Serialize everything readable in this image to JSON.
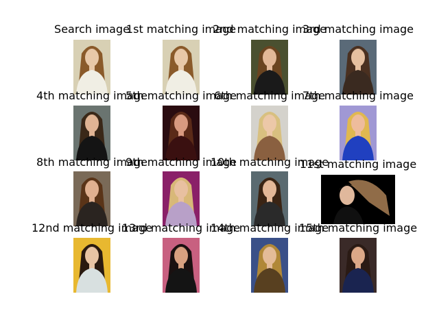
{
  "figure": {
    "cells": [
      {
        "title": "Search image",
        "bg": "#d8d0b4",
        "hair": "#8a5a2a",
        "skin": "#e8c8a8",
        "top": "#f0eee4"
      },
      {
        "title": "1st matching image",
        "bg": "#d8d0b4",
        "hair": "#8a5a2a",
        "skin": "#e8c8a8",
        "top": "#f0eee4"
      },
      {
        "title": "2nd matching image",
        "bg": "#4a5030",
        "hair": "#6a4420",
        "skin": "#e2b898",
        "top": "#1a1a1a"
      },
      {
        "title": "3rd matching image",
        "bg": "#5a6a78",
        "hair": "#4a3020",
        "skin": "#e6c0a0",
        "top": "#3a2a20"
      },
      {
        "title": "4th matching image",
        "bg": "#6a7470",
        "hair": "#3a2818",
        "skin": "#e0b494",
        "top": "#141414"
      },
      {
        "title": "5th matching image",
        "bg": "#2a0c10",
        "hair": "#5a2a18",
        "skin": "#d89a80",
        "top": "#3a1010"
      },
      {
        "title": "6th matching image",
        "bg": "#d4d2cc",
        "hair": "#d8c080",
        "skin": "#ecc8a8",
        "top": "#8a6040"
      },
      {
        "title": "7th matching image",
        "bg": "#a098d4",
        "hair": "#e0b850",
        "skin": "#eebc9c",
        "top": "#2040c0"
      },
      {
        "title": "8th matching image",
        "bg": "#7a6a58",
        "hair": "#5a3418",
        "skin": "#e0b090",
        "top": "#2a2420"
      },
      {
        "title": "9th matching image",
        "bg": "#8a2068",
        "hair": "#d8b878",
        "skin": "#e8c0a0",
        "top": "#b8a0c8"
      },
      {
        "title": "10th matching image",
        "bg": "#5a6a70",
        "hair": "#3a2414",
        "skin": "#e4b898",
        "top": "#2a2a2a"
      },
      {
        "title": "11st matching image",
        "bg": "#000000",
        "hair": "#a07850",
        "skin": "#e0b89c",
        "top": "#101010"
      },
      {
        "title": "12nd matching image",
        "bg": "#e8b830",
        "hair": "#2a1a10",
        "skin": "#e8c4a4",
        "top": "#d8e0e0"
      },
      {
        "title": "13rd matching image",
        "bg": "#c86080",
        "hair": "#1a1010",
        "skin": "#d8a080",
        "top": "#141414"
      },
      {
        "title": "14th matching image",
        "bg": "#3a5088",
        "hair": "#b08838",
        "skin": "#e4bc98",
        "top": "#584020"
      },
      {
        "title": "15th matching image",
        "bg": "#3a2a28",
        "hair": "#2a1a14",
        "skin": "#dca888",
        "top": "#1a2450"
      }
    ]
  }
}
